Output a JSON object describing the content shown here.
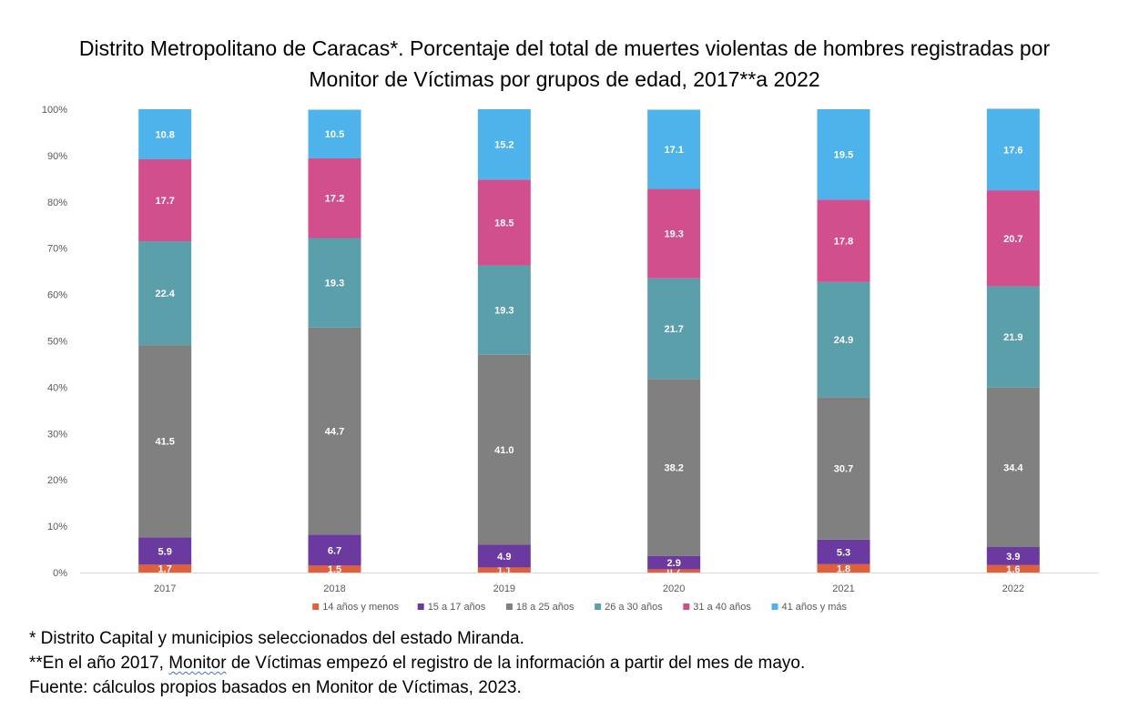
{
  "chart_data": {
    "type": "bar",
    "stacked": "percent",
    "title": "Distrito Metropolitano de Caracas*. Porcentaje del total de muertes violentas de hombres registradas por Monitor de Víctimas por grupos de edad, 2017**a 2022",
    "title_lines": [
      "Distrito Metropolitano de Caracas*. Porcentaje del total de muertes violentas de hombres registradas por",
      "Monitor de Víctimas por grupos de edad, 2017**a 2022"
    ],
    "categories": [
      "2017",
      "2018",
      "2019",
      "2020",
      "2021",
      "2022"
    ],
    "y_ticks": [
      "0%",
      "10%",
      "20%",
      "30%",
      "40%",
      "50%",
      "60%",
      "70%",
      "80%",
      "90%",
      "100%"
    ],
    "ylim": [
      0,
      100
    ],
    "grid": false,
    "legend_position": "bottom",
    "series": [
      {
        "name": "14 años y menos",
        "color": "#e0603a",
        "labels": [
          "1.7",
          "1.5",
          "1.1",
          "0.7",
          "1.8",
          "1.6"
        ],
        "values": [
          1.7,
          1.5,
          1.1,
          0.7,
          1.8,
          1.6
        ]
      },
      {
        "name": "15 a 17 años",
        "color": "#6b3aa0",
        "labels": [
          "5.9",
          "6.7",
          "4.9",
          "2.9",
          "5.3",
          "3.9"
        ],
        "values": [
          5.9,
          6.7,
          4.9,
          2.9,
          5.3,
          3.9
        ]
      },
      {
        "name": "18 a 25 años",
        "color": "#808080",
        "labels": [
          "41.5",
          "44.7",
          "41.0",
          "38.2",
          "30.7",
          "34.4"
        ],
        "values": [
          41.5,
          44.7,
          41.0,
          38.2,
          30.7,
          34.4
        ]
      },
      {
        "name": "26 a 30 años",
        "color": "#5b9fab",
        "labels": [
          "22.4",
          "19.3",
          "19.3",
          "21.7",
          "24.9",
          "21.9"
        ],
        "values": [
          22.4,
          19.3,
          19.3,
          21.7,
          24.9,
          21.9
        ]
      },
      {
        "name": "31 a 40 años",
        "color": "#d24f8e",
        "labels": [
          "17.7",
          "17.2",
          "18.5",
          "19.3",
          "17.8",
          "20.7"
        ],
        "values": [
          17.7,
          17.2,
          18.5,
          19.3,
          17.8,
          20.7
        ]
      },
      {
        "name": "41 años y más",
        "color": "#4eb3ea",
        "labels": [
          "10.8",
          "10.5",
          "15.2",
          "17.1",
          "19.5",
          "17.6"
        ],
        "values": [
          10.8,
          10.5,
          15.2,
          17.1,
          19.5,
          17.6
        ]
      }
    ]
  },
  "notes": {
    "line1": "* Distrito Capital y municipios seleccionados del estado Miranda.",
    "line2_before": "**En el año 2017, ",
    "line2_flagged": "Monitor",
    "line2_after": " de Víctimas empezó el registro de la información a partir del mes de mayo.",
    "line3": "Fuente: cálculos propios basados en Monitor de Víctimas, 2023."
  }
}
